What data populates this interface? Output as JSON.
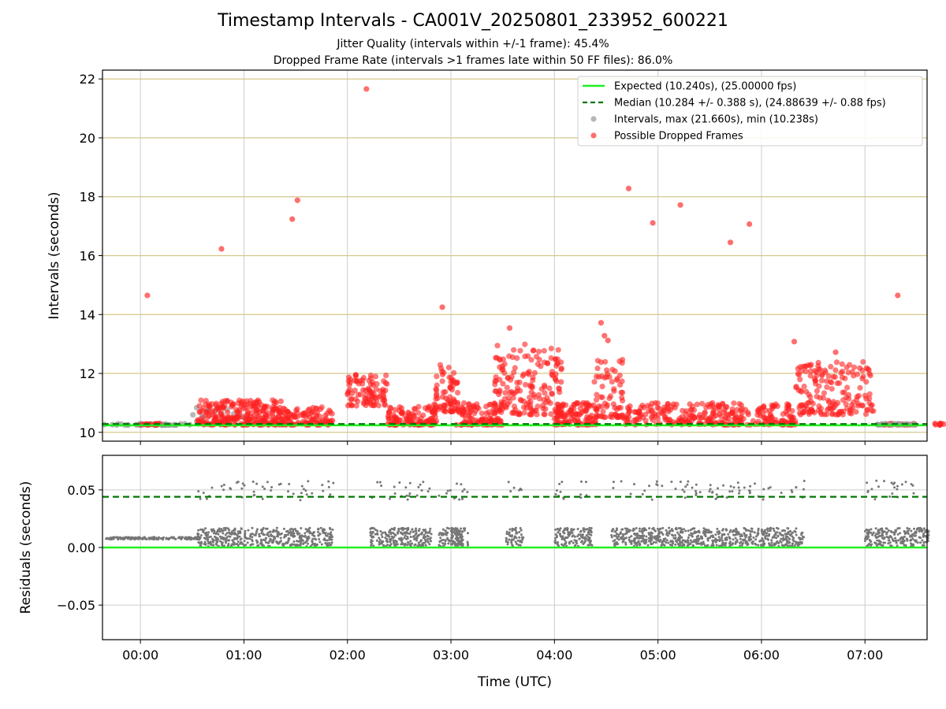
{
  "title": "Timestamp Intervals - CA001V_20250801_233952_600221",
  "subtitles": [
    "Jitter Quality (intervals within +/-1 frame): 45.4%",
    "Dropped Frame Rate (intervals >1 frames late within 50 FF files): 86.0%"
  ],
  "colors": {
    "expected": "#22ee22",
    "median": "#007700",
    "intervals": "#999999",
    "dropped": "#ff2222",
    "hgrid_top": "#d4c88a",
    "grid": "#cccccc",
    "residuals": "#777777"
  },
  "chart_data": [
    {
      "type": "scatter",
      "xlabel": "",
      "ylabel": "Intervals (seconds)",
      "xlim": [
        "-00:22",
        "07:36"
      ],
      "ylim": [
        9.7,
        22.3
      ],
      "yticks": [
        "10",
        "12",
        "14",
        "16",
        "18",
        "20",
        "22"
      ],
      "grid": true,
      "legend_position": "upper-right",
      "legend": [
        "Expected (10.240s), (25.00000 fps)",
        "Median (10.284 +/- 0.388 s), (24.88639 +/- 0.88 fps)",
        "Intervals, max (21.660s), min (10.238s)",
        "Possible Dropped Frames"
      ],
      "lines": {
        "expected": 10.24,
        "median": 10.284
      },
      "interval_range": {
        "max": 21.66,
        "min": 10.238
      },
      "series": [
        {
          "name": "Possible Dropped Frames",
          "points": [
            [
              "00:04",
              14.65
            ],
            [
              "00:47",
              16.23
            ],
            [
              "01:28",
              17.24
            ],
            [
              "01:31",
              17.88
            ],
            [
              "02:11",
              21.66
            ],
            [
              "02:55",
              14.25
            ],
            [
              "03:34",
              13.54
            ],
            [
              "03:56",
              12.34
            ],
            [
              "04:27",
              13.72
            ],
            [
              "04:29",
              13.28
            ],
            [
              "04:31",
              13.12
            ],
            [
              "04:43",
              18.28
            ],
            [
              "04:57",
              17.11
            ],
            [
              "05:13",
              17.72
            ],
            [
              "05:42",
              16.45
            ],
            [
              "05:53",
              17.07
            ],
            [
              "06:19",
              13.08
            ],
            [
              "06:32",
              12.05
            ],
            [
              "06:43",
              12.72
            ],
            [
              "06:57",
              12.18
            ],
            [
              "07:19",
              14.65
            ]
          ]
        }
      ]
    },
    {
      "type": "scatter",
      "xlabel": "Time (UTC)",
      "ylabel": "Residuals (seconds)",
      "xlim": [
        "-00:22",
        "07:36"
      ],
      "ylim": [
        -0.08,
        0.08
      ],
      "yticks": [
        "−0.05",
        "0.00",
        "0.05"
      ],
      "xticks": [
        "00:00",
        "01:00",
        "02:00",
        "03:00",
        "04:00",
        "05:00",
        "06:00",
        "07:00"
      ],
      "grid": true,
      "lines": {
        "expected": 0.0,
        "median": 0.044
      }
    }
  ]
}
